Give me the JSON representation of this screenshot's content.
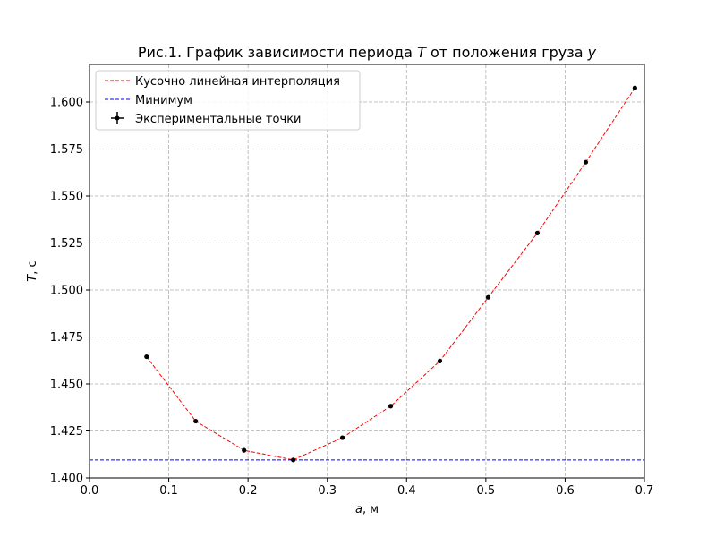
{
  "chart_data": {
    "type": "line",
    "title": {
      "prefix": "Рис.1. График зависимости периода ",
      "var1": "T",
      "middle": " от положения груза ",
      "var2": "y"
    },
    "xlabel": {
      "var": "a",
      "unit": ", м"
    },
    "ylabel": {
      "var": "T",
      "unit": ", с"
    },
    "xlim": [
      0.0,
      0.7
    ],
    "ylim": [
      1.4,
      1.62
    ],
    "xticks": [
      0.0,
      0.1,
      0.2,
      0.3,
      0.4,
      0.5,
      0.6,
      0.7
    ],
    "xtick_labels": [
      "0.0",
      "0.1",
      "0.2",
      "0.3",
      "0.4",
      "0.5",
      "0.6",
      "0.7"
    ],
    "yticks": [
      1.4,
      1.425,
      1.45,
      1.475,
      1.5,
      1.525,
      1.55,
      1.575,
      1.6
    ],
    "ytick_labels": [
      "1.400",
      "1.425",
      "1.450",
      "1.475",
      "1.500",
      "1.525",
      "1.550",
      "1.575",
      "1.600"
    ],
    "grid": true,
    "legend_position": "top-left",
    "series": [
      {
        "name": "Кусочно линейная интерполяция",
        "kind": "line",
        "color": "#ff0000",
        "dash": true,
        "x": [
          0.072,
          0.134,
          0.195,
          0.257,
          0.319,
          0.38,
          0.442,
          0.503,
          0.565,
          0.626,
          0.688
        ],
        "y": [
          1.4645,
          1.4302,
          1.4147,
          1.4096,
          1.4214,
          1.4382,
          1.4622,
          1.4961,
          1.5303,
          1.568,
          1.6075
        ]
      },
      {
        "name": "Минимум",
        "kind": "hline",
        "color": "#0000ff",
        "dash": true,
        "y": 1.4096
      },
      {
        "name": "Экспериментальные точки",
        "kind": "scatter",
        "color": "#000000",
        "x": [
          0.072,
          0.134,
          0.195,
          0.257,
          0.319,
          0.38,
          0.442,
          0.503,
          0.565,
          0.626,
          0.688
        ],
        "y": [
          1.4645,
          1.4302,
          1.4147,
          1.4096,
          1.4214,
          1.4382,
          1.4622,
          1.4961,
          1.5303,
          1.568,
          1.6075
        ]
      }
    ]
  }
}
